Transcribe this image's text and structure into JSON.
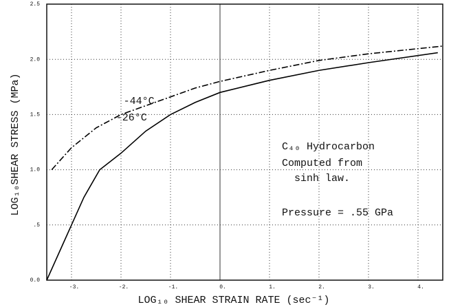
{
  "chart_data": {
    "type": "line",
    "xlabel": "LOG₁₀ SHEAR STRAIN RATE (sec⁻¹)",
    "ylabel": "LOG₁₀SHEAR STRESS (MPa)",
    "xlim": [
      -3.5,
      4.5
    ],
    "ylim": [
      0,
      2.5
    ],
    "xticks": [
      {
        "value": -3,
        "label": "-3."
      },
      {
        "value": -2,
        "label": "-2."
      },
      {
        "value": -1,
        "label": "-1."
      },
      {
        "value": 0,
        "label": "0."
      },
      {
        "value": 1,
        "label": "1."
      },
      {
        "value": 2,
        "label": "2."
      },
      {
        "value": 3,
        "label": "3."
      },
      {
        "value": 4,
        "label": "4."
      }
    ],
    "yticks": [
      {
        "value": 0,
        "label": "0.0"
      },
      {
        "value": 0.5,
        "label": ".5"
      },
      {
        "value": 1,
        "label": "1.0"
      },
      {
        "value": 1.5,
        "label": "1.5"
      },
      {
        "value": 2,
        "label": "2.0"
      },
      {
        "value": 2.5,
        "label": "2.5"
      }
    ],
    "grid": true,
    "series": [
      {
        "name": "-44°C",
        "color": "#000000",
        "style": "dashdot",
        "x": [
          -3.4,
          -3,
          -2.5,
          -2,
          -1.5,
          -1,
          -0.5,
          0,
          1,
          2,
          3,
          4.5
        ],
        "values": [
          1.0,
          1.2,
          1.38,
          1.5,
          1.58,
          1.66,
          1.74,
          1.8,
          1.9,
          1.99,
          2.05,
          2.12
        ]
      },
      {
        "name": "-26°C",
        "color": "#000000",
        "style": "solid",
        "x": [
          -3.5,
          -3.2,
          -3,
          -2.75,
          -2.43,
          -2,
          -1.5,
          -1,
          -0.5,
          0,
          1,
          2,
          3,
          4.4
        ],
        "values": [
          0,
          0.3,
          0.5,
          0.75,
          1.0,
          1.15,
          1.35,
          1.5,
          1.61,
          1.7,
          1.81,
          1.9,
          1.97,
          2.06
        ]
      }
    ],
    "annotations": [
      "C₄₀ Hydrocarbon",
      "Computed from",
      "  sinh law.",
      "Pressure = .55 GPa"
    ]
  }
}
